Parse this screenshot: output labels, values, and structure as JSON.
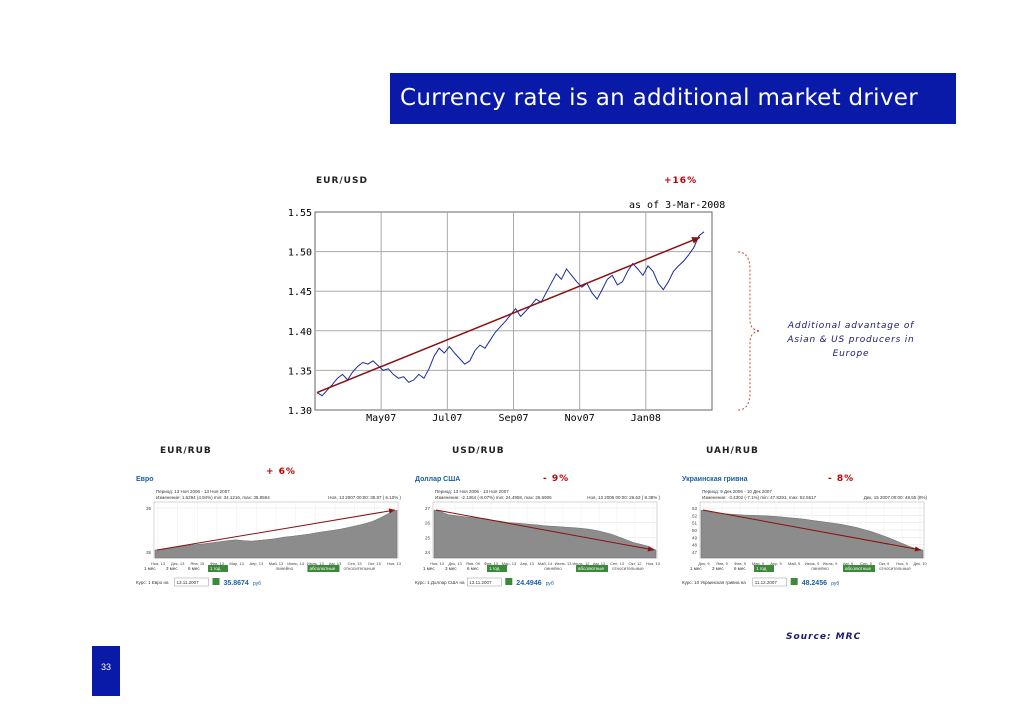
{
  "slide": {
    "title": "Currency rate is an additional market driver",
    "page_number": "33",
    "source": "Source: MRC",
    "note": [
      "Additional advantage of",
      "Asian & US producers in",
      "Europe"
    ]
  },
  "colors": {
    "title_bg": "#0a1aa8",
    "trend_arrow": "#8b1010",
    "main_line": "#1a2aa0",
    "mini_area": "#8c8c8c",
    "label_red": "#c00000",
    "bracket": "#cc4444"
  },
  "chart_data": [
    {
      "type": "line",
      "label": "EUR/USD",
      "change": "+16%",
      "as_of": "as of 3-Mar-2008",
      "x_ticks": [
        "May07",
        "Jul07",
        "Sep07",
        "Nov07",
        "Jan08"
      ],
      "y_ticks": [
        "1.55",
        "1.50",
        "1.45",
        "1.40",
        "1.35",
        "1.30"
      ],
      "ylim": [
        1.3,
        1.55
      ],
      "grid": true,
      "values": [
        1.322,
        1.318,
        1.325,
        1.332,
        1.34,
        1.345,
        1.338,
        1.348,
        1.355,
        1.36,
        1.358,
        1.362,
        1.356,
        1.35,
        1.352,
        1.345,
        1.34,
        1.342,
        1.335,
        1.338,
        1.345,
        1.34,
        1.352,
        1.368,
        1.378,
        1.372,
        1.38,
        1.372,
        1.365,
        1.358,
        1.362,
        1.375,
        1.382,
        1.378,
        1.388,
        1.398,
        1.405,
        1.412,
        1.42,
        1.428,
        1.418,
        1.425,
        1.432,
        1.44,
        1.436,
        1.448,
        1.46,
        1.472,
        1.465,
        1.478,
        1.47,
        1.462,
        1.455,
        1.46,
        1.448,
        1.44,
        1.452,
        1.465,
        1.47,
        1.458,
        1.462,
        1.475,
        1.485,
        1.478,
        1.47,
        1.482,
        1.475,
        1.46,
        1.452,
        1.462,
        1.475,
        1.482,
        1.488,
        1.496,
        1.505,
        1.52,
        1.525
      ],
      "trend": {
        "from": 1.322,
        "to": 1.518
      }
    },
    {
      "type": "area",
      "label": "EUR/RUB",
      "change": "+ 6%",
      "currency_name": "Евро",
      "period_line1": "Период: 13 Ноя 2006 - 13 Ноя 2007",
      "period_line2": "Изменение: 1.6294 (4.94%) min: 34.1216, max: 35.8584",
      "stamp": "Ноя, 13 2007 00:00: 35.87 ( 6.10% )",
      "x_ticks": [
        "Ноя, 13",
        "Дек, 13",
        "Янв, 15",
        "Фев, 13",
        "Мар, 13",
        "Апр, 13",
        "Май, 13",
        "Июнь, 13",
        "Июль, 13",
        "Авг, 13",
        "Сен, 13",
        "Окт, 15",
        "Ноя, 13"
      ],
      "y_ticks": [
        "36",
        "35"
      ],
      "values": [
        34.35,
        34.38,
        34.42,
        34.47,
        34.52,
        34.55,
        34.58,
        34.62,
        34.66,
        34.7,
        34.73,
        34.7,
        34.68,
        34.71,
        34.74,
        34.78,
        34.83,
        34.86,
        34.9,
        34.94,
        34.99,
        35.04,
        35.08,
        35.13,
        35.19,
        35.26,
        35.33,
        35.42,
        35.56,
        35.72,
        35.84
      ],
      "buttons": [
        "1 мес",
        "3 мес",
        "6 мес",
        "1 год"
      ],
      "mode_buttons": [
        "линейно",
        "абсолютные",
        "относительные"
      ],
      "rate_label": "Курс: 1 Евро на",
      "date_value": "13.11.2007",
      "rate_value": "35.8674",
      "rate_unit": "руб"
    },
    {
      "type": "area",
      "label": "USD/RUB",
      "change": "- 9%",
      "currency_name": "Доллар США",
      "period_line1": "Период: 13 Ноя 2006 - 13 Ноя 2007",
      "period_line2": "Изменение: -2.1364 (-8.07%) min: 24.4958, max: 26.6906",
      "stamp": "Ноя, 13 2006 00:00: 26.63 ( 8.38% )",
      "x_ticks": [
        "Ноя, 13",
        "Дек, 13",
        "Янв, 09",
        "Фев, 13",
        "Мар, 13",
        "Апр, 13",
        "Май, 14",
        "Июнь, 13",
        "Июль, 12",
        "Авг, 13",
        "Сен, 13",
        "Окт, 12",
        "Ноя, 13"
      ],
      "y_ticks": [
        "27",
        "26",
        "25",
        "24"
      ],
      "values": [
        26.65,
        26.55,
        26.4,
        26.35,
        26.3,
        26.25,
        26.22,
        26.18,
        26.1,
        26.05,
        25.98,
        25.95,
        25.92,
        25.88,
        25.85,
        25.8,
        25.78,
        25.75,
        25.72,
        25.7,
        25.66,
        25.62,
        25.55,
        25.45,
        25.35,
        25.2,
        25.05,
        24.9,
        24.8,
        24.7,
        24.5
      ],
      "buttons": [
        "1 мес",
        "3 мес",
        "6 мес",
        "1 год"
      ],
      "mode_buttons": [
        "линейно",
        "абсолютные",
        "относительные"
      ],
      "rate_label": "Курс: 1 Доллар США на",
      "date_value": "13.11.2007",
      "rate_value": "24.4946",
      "rate_unit": "руб"
    },
    {
      "type": "area",
      "label": "UAH/RUB",
      "change": "- 8%",
      "currency_name": "Украинская гривна",
      "period_line1": "Период: 9 Дек 2006 - 10 Дек 2007",
      "period_line2": "Изменение: -3.4302 (-7.1%) min: 47.8291, max: 52.5617",
      "stamp": "Дек, 15 2007 00:00: 48.55 (8%)",
      "x_ticks": [
        "Дек, 9",
        "Янв, 9",
        "Фев, 9",
        "Мар, 9",
        "Апр, 9",
        "Май, 9",
        "Июнь, 9",
        "Июль, 9",
        "Авг, 9",
        "Сен, 9",
        "Окт, 9",
        "Ноя, 9",
        "Дек, 10"
      ],
      "y_ticks": [
        "53",
        "52",
        "51",
        "50",
        "49",
        "48",
        "47"
      ],
      "values": [
        52.3,
        52.15,
        52.0,
        51.95,
        51.9,
        51.85,
        51.8,
        51.78,
        51.75,
        51.72,
        51.68,
        51.62,
        51.55,
        51.48,
        51.4,
        51.3,
        51.2,
        51.1,
        51.0,
        50.9,
        50.75,
        50.6,
        50.4,
        50.2,
        49.95,
        49.7,
        49.4,
        49.1,
        48.8,
        48.55,
        48.4
      ],
      "buttons": [
        "1 мес",
        "3 мес",
        "6 мес",
        "1 год"
      ],
      "mode_buttons": [
        "линейно",
        "абсолютные",
        "относительные"
      ],
      "rate_label": "Курс: 10 Украинская гривна на",
      "date_value": "11.12.2007",
      "rate_value": "48.2456",
      "rate_unit": "руб"
    }
  ]
}
